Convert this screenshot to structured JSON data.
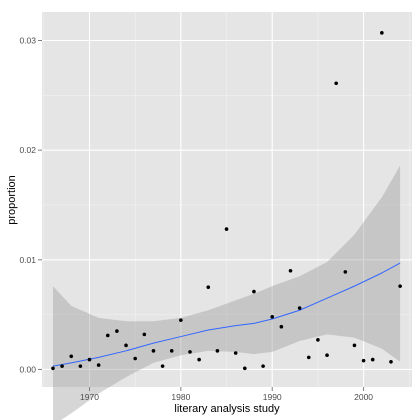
{
  "chart_data": {
    "type": "scatter",
    "title": "",
    "xlabel": "literary analysis study",
    "ylabel": "proportion",
    "xlim": [
      1964.8,
      2005.3
    ],
    "ylim": [
      -0.0016,
      0.0326
    ],
    "x_ticks": [
      1970,
      1980,
      1990,
      2000
    ],
    "y_ticks": [
      0.0,
      0.01,
      0.02,
      0.03
    ],
    "x_tick_labels": [
      "1970",
      "1980",
      "1990",
      "2000"
    ],
    "y_tick_labels": [
      "0.00",
      "0.01",
      "0.02",
      "0.03"
    ],
    "grid": true,
    "background": "#e5e5e5",
    "grid_color": "#ffffff",
    "point_color": "#000000",
    "smooth_color": "#3366ff",
    "band_color": "#999999",
    "points": [
      {
        "x": 1966,
        "y": 0.0001
      },
      {
        "x": 1967,
        "y": 0.0003
      },
      {
        "x": 1968,
        "y": 0.0012
      },
      {
        "x": 1969,
        "y": 0.0003
      },
      {
        "x": 1970,
        "y": 0.0009
      },
      {
        "x": 1971,
        "y": 0.0004
      },
      {
        "x": 1972,
        "y": 0.0031
      },
      {
        "x": 1973,
        "y": 0.0035
      },
      {
        "x": 1974,
        "y": 0.0022
      },
      {
        "x": 1975,
        "y": 0.001
      },
      {
        "x": 1976,
        "y": 0.0032
      },
      {
        "x": 1977,
        "y": 0.0017
      },
      {
        "x": 1978,
        "y": 0.0003
      },
      {
        "x": 1979,
        "y": 0.0017
      },
      {
        "x": 1980,
        "y": 0.0045
      },
      {
        "x": 1981,
        "y": 0.0016
      },
      {
        "x": 1982,
        "y": 0.0009
      },
      {
        "x": 1983,
        "y": 0.0075
      },
      {
        "x": 1984,
        "y": 0.0017
      },
      {
        "x": 1985,
        "y": 0.0128
      },
      {
        "x": 1986,
        "y": 0.0015
      },
      {
        "x": 1987,
        "y": 0.0001
      },
      {
        "x": 1988,
        "y": 0.0071
      },
      {
        "x": 1989,
        "y": 0.0003
      },
      {
        "x": 1990,
        "y": 0.0048
      },
      {
        "x": 1991,
        "y": 0.0039
      },
      {
        "x": 1992,
        "y": 0.009
      },
      {
        "x": 1993,
        "y": 0.0056
      },
      {
        "x": 1994,
        "y": 0.0011
      },
      {
        "x": 1995,
        "y": 0.0027
      },
      {
        "x": 1996,
        "y": 0.0013
      },
      {
        "x": 1997,
        "y": 0.0261
      },
      {
        "x": 1998,
        "y": 0.0089
      },
      {
        "x": 1999,
        "y": 0.0022
      },
      {
        "x": 2000,
        "y": 0.0008
      },
      {
        "x": 2001,
        "y": 0.0009
      },
      {
        "x": 2002,
        "y": 0.0307
      },
      {
        "x": 2003,
        "y": 0.0007
      },
      {
        "x": 2004,
        "y": 0.0076
      }
    ],
    "smooth": {
      "x": [
        1966,
        1968,
        1971,
        1974,
        1977,
        1980,
        1983,
        1986,
        1988,
        1990,
        1993,
        1996,
        1999,
        2002,
        2004
      ],
      "y": [
        0.0003,
        0.0006,
        0.0011,
        0.0017,
        0.0024,
        0.003,
        0.0036,
        0.004,
        0.0042,
        0.0046,
        0.0054,
        0.0065,
        0.0076,
        0.0088,
        0.0097
      ],
      "lower": [
        -0.0051,
        -0.004,
        -0.0022,
        -0.0007,
        0.0006,
        0.0013,
        0.0017,
        0.0016,
        0.0014,
        0.0016,
        0.0026,
        0.0032,
        0.0029,
        0.0019,
        0.0007
      ],
      "upper": [
        0.0076,
        0.0058,
        0.0047,
        0.0044,
        0.0044,
        0.0047,
        0.0054,
        0.0063,
        0.0069,
        0.0076,
        0.0085,
        0.0098,
        0.0123,
        0.0157,
        0.0186
      ]
    }
  }
}
